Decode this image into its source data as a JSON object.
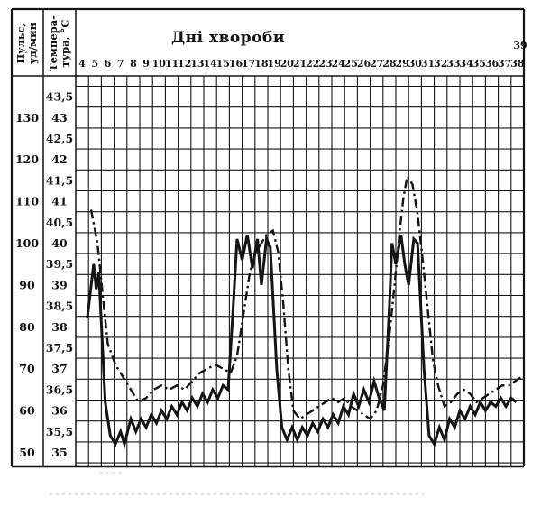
{
  "header": {
    "title": "Дні хвороби",
    "pulse_axis_label_line1": "Пульс,",
    "pulse_axis_label_line2": "уд/мин",
    "temp_axis_label_line1": "Темпера-",
    "temp_axis_label_line2": "тура, °С",
    "overflow_day_label": "39"
  },
  "chart_data": {
    "type": "line",
    "title": "Дні хвороби",
    "x_axis": {
      "label": "Дні хвороби",
      "ticks": [
        4,
        5,
        6,
        7,
        8,
        9,
        10,
        11,
        12,
        13,
        14,
        15,
        16,
        17,
        18,
        19,
        20,
        21,
        22,
        23,
        24,
        25,
        26,
        27,
        28,
        29,
        30,
        31,
        32,
        33,
        34,
        35,
        36,
        37,
        38
      ],
      "overflow_tick": 39,
      "range": [
        4,
        39
      ]
    },
    "y_axis_pulse": {
      "label": "Пульс, уд/мин",
      "ticks": [
        130,
        120,
        110,
        100,
        90,
        80,
        70,
        60,
        50
      ],
      "range": [
        50,
        135
      ],
      "bpm_per_degree": 10
    },
    "y_axis_temp": {
      "label": "Температура, °С",
      "ticks": [
        43.5,
        43,
        42.5,
        42,
        41.5,
        41,
        40.5,
        40,
        39.5,
        39,
        38.5,
        38,
        37.5,
        37,
        36.5,
        36,
        35.5,
        35
      ],
      "range": [
        35,
        43.75
      ],
      "decimal_separator": ","
    },
    "grid": true,
    "legend_position": "none",
    "series": [
      {
        "name": "Температура, °С",
        "style": "solid",
        "color": "#141414",
        "points": [
          [
            4.4,
            38.2
          ],
          [
            4.9,
            39.5
          ],
          [
            5.1,
            38.9
          ],
          [
            5.3,
            39.3
          ],
          [
            5.8,
            36.2
          ],
          [
            6.2,
            35.4
          ],
          [
            6.6,
            35.2
          ],
          [
            7.0,
            35.5
          ],
          [
            7.3,
            35.2
          ],
          [
            7.8,
            35.8
          ],
          [
            8.2,
            35.5
          ],
          [
            8.6,
            35.8
          ],
          [
            9.0,
            35.6
          ],
          [
            9.4,
            35.9
          ],
          [
            9.8,
            35.7
          ],
          [
            10.2,
            36.0
          ],
          [
            10.6,
            35.8
          ],
          [
            11.0,
            36.1
          ],
          [
            11.4,
            35.9
          ],
          [
            11.8,
            36.2
          ],
          [
            12.2,
            36.0
          ],
          [
            12.6,
            36.3
          ],
          [
            13.0,
            36.1
          ],
          [
            13.4,
            36.4
          ],
          [
            13.8,
            36.2
          ],
          [
            14.2,
            36.5
          ],
          [
            14.6,
            36.3
          ],
          [
            15.0,
            36.6
          ],
          [
            15.4,
            36.5
          ],
          [
            15.8,
            38.5
          ],
          [
            16.1,
            40.1
          ],
          [
            16.5,
            39.6
          ],
          [
            16.9,
            40.2
          ],
          [
            17.3,
            39.4
          ],
          [
            17.7,
            40.1
          ],
          [
            18.0,
            39.0
          ],
          [
            18.4,
            40.1
          ],
          [
            18.7,
            39.9
          ],
          [
            19.2,
            37.0
          ],
          [
            19.6,
            35.6
          ],
          [
            20.0,
            35.3
          ],
          [
            20.4,
            35.6
          ],
          [
            20.8,
            35.3
          ],
          [
            21.2,
            35.6
          ],
          [
            21.6,
            35.4
          ],
          [
            22.0,
            35.7
          ],
          [
            22.4,
            35.5
          ],
          [
            22.8,
            35.8
          ],
          [
            23.2,
            35.6
          ],
          [
            23.6,
            35.9
          ],
          [
            24.0,
            35.7
          ],
          [
            24.4,
            36.1
          ],
          [
            24.8,
            35.9
          ],
          [
            25.2,
            36.4
          ],
          [
            25.6,
            36.1
          ],
          [
            26.0,
            36.5
          ],
          [
            26.4,
            36.2
          ],
          [
            26.8,
            36.7
          ],
          [
            27.2,
            36.3
          ],
          [
            27.6,
            36.0
          ],
          [
            28.0,
            38.5
          ],
          [
            28.2,
            40.0
          ],
          [
            28.5,
            39.5
          ],
          [
            28.9,
            40.2
          ],
          [
            29.2,
            39.5
          ],
          [
            29.5,
            39.0
          ],
          [
            29.9,
            40.1
          ],
          [
            30.2,
            40.0
          ],
          [
            30.7,
            37.0
          ],
          [
            31.1,
            35.4
          ],
          [
            31.5,
            35.2
          ],
          [
            31.9,
            35.6
          ],
          [
            32.3,
            35.3
          ],
          [
            32.7,
            35.8
          ],
          [
            33.1,
            35.6
          ],
          [
            33.5,
            36.0
          ],
          [
            33.9,
            35.8
          ],
          [
            34.3,
            36.1
          ],
          [
            34.7,
            35.9
          ],
          [
            35.1,
            36.2
          ],
          [
            35.5,
            36.0
          ],
          [
            35.9,
            36.2
          ],
          [
            36.3,
            36.1
          ],
          [
            36.7,
            36.3
          ],
          [
            37.1,
            36.1
          ],
          [
            37.5,
            36.3
          ],
          [
            37.9,
            36.2
          ]
        ]
      },
      {
        "name": "Пульс, уд/мин",
        "style": "dash-dot",
        "color": "#141414",
        "points": [
          [
            4.7,
            108
          ],
          [
            5.2,
            100
          ],
          [
            5.6,
            88
          ],
          [
            6.0,
            76
          ],
          [
            6.6,
            71
          ],
          [
            7.2,
            68
          ],
          [
            7.8,
            65
          ],
          [
            8.4,
            62
          ],
          [
            9.0,
            63
          ],
          [
            9.6,
            65
          ],
          [
            10.2,
            66
          ],
          [
            10.8,
            65
          ],
          [
            11.4,
            66
          ],
          [
            12.0,
            65
          ],
          [
            12.6,
            67
          ],
          [
            13.2,
            69
          ],
          [
            13.8,
            70
          ],
          [
            14.4,
            71
          ],
          [
            15.0,
            70
          ],
          [
            15.6,
            69
          ],
          [
            16.1,
            73
          ],
          [
            16.6,
            83
          ],
          [
            17.1,
            93
          ],
          [
            17.6,
            98
          ],
          [
            18.0,
            100
          ],
          [
            18.4,
            102
          ],
          [
            18.9,
            103
          ],
          [
            19.3,
            98
          ],
          [
            19.7,
            86
          ],
          [
            20.1,
            70
          ],
          [
            20.5,
            60
          ],
          [
            21.0,
            58
          ],
          [
            21.5,
            59
          ],
          [
            22.0,
            60
          ],
          [
            22.5,
            61
          ],
          [
            23.0,
            62
          ],
          [
            23.5,
            63
          ],
          [
            24.0,
            62
          ],
          [
            24.5,
            63
          ],
          [
            25.0,
            61
          ],
          [
            25.5,
            60
          ],
          [
            26.0,
            59
          ],
          [
            26.5,
            58
          ],
          [
            27.0,
            60
          ],
          [
            27.5,
            66
          ],
          [
            28.0,
            78
          ],
          [
            28.4,
            90
          ],
          [
            28.8,
            103
          ],
          [
            29.1,
            111
          ],
          [
            29.4,
            116
          ],
          [
            29.8,
            114
          ],
          [
            30.2,
            107
          ],
          [
            30.6,
            96
          ],
          [
            31.0,
            84
          ],
          [
            31.4,
            72
          ],
          [
            31.8,
            66
          ],
          [
            32.3,
            61
          ],
          [
            32.8,
            62
          ],
          [
            33.3,
            64
          ],
          [
            33.8,
            65
          ],
          [
            34.3,
            64
          ],
          [
            34.8,
            62
          ],
          [
            35.3,
            63
          ],
          [
            35.8,
            64
          ],
          [
            36.3,
            65
          ],
          [
            36.8,
            66
          ],
          [
            37.3,
            66
          ],
          [
            37.8,
            67
          ],
          [
            38.3,
            68
          ]
        ]
      }
    ]
  }
}
